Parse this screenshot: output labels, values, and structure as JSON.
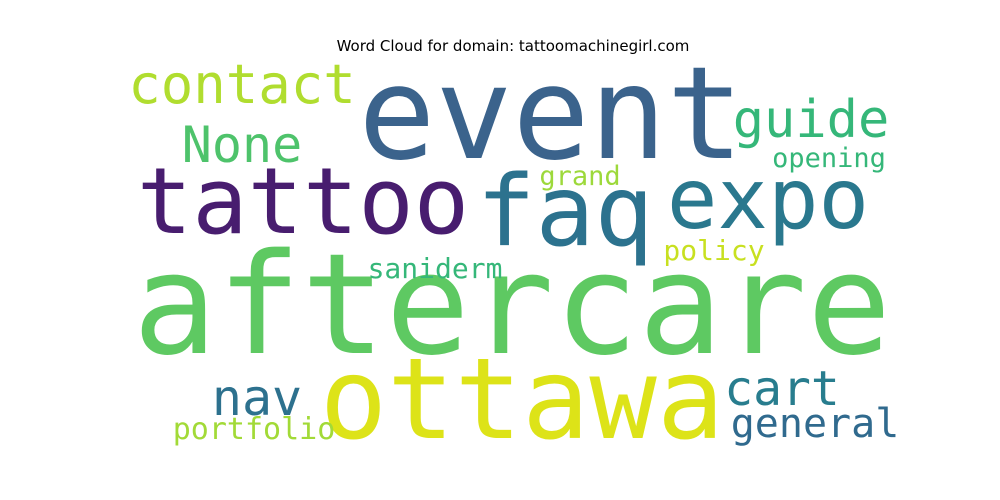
{
  "chart_data": {
    "type": "wordcloud",
    "title": "Word Cloud for domain: tattoomachinegirl.com",
    "words": [
      {
        "text": "aftercare",
        "weight": 1.0,
        "color": "#5ec962"
      },
      {
        "text": "event",
        "weight": 0.86,
        "color": "#3b638c"
      },
      {
        "text": "ottawa",
        "weight": 0.8,
        "color": "#dde318"
      },
      {
        "text": "faq",
        "weight": 0.7,
        "color": "#2c728e"
      },
      {
        "text": "tattoo",
        "weight": 0.64,
        "color": "#481d6f"
      },
      {
        "text": "expo",
        "weight": 0.6,
        "color": "#2a788e"
      },
      {
        "text": "contact",
        "weight": 0.42,
        "color": "#b0dd2f"
      },
      {
        "text": "guide",
        "weight": 0.38,
        "color": "#35b779"
      },
      {
        "text": "None",
        "weight": 0.36,
        "color": "#4ec36b"
      },
      {
        "text": "nav",
        "weight": 0.36,
        "color": "#2d718e"
      },
      {
        "text": "cart",
        "weight": 0.34,
        "color": "#287d8e"
      },
      {
        "text": "general",
        "weight": 0.28,
        "color": "#306a8e"
      },
      {
        "text": "portfolio",
        "weight": 0.22,
        "color": "#a2da37"
      },
      {
        "text": "saniderm",
        "weight": 0.2,
        "color": "#35b779"
      },
      {
        "text": "policy",
        "weight": 0.2,
        "color": "#c8e020"
      },
      {
        "text": "opening",
        "weight": 0.19,
        "color": "#35b779"
      },
      {
        "text": "grand",
        "weight": 0.19,
        "color": "#9dd93b"
      }
    ]
  }
}
